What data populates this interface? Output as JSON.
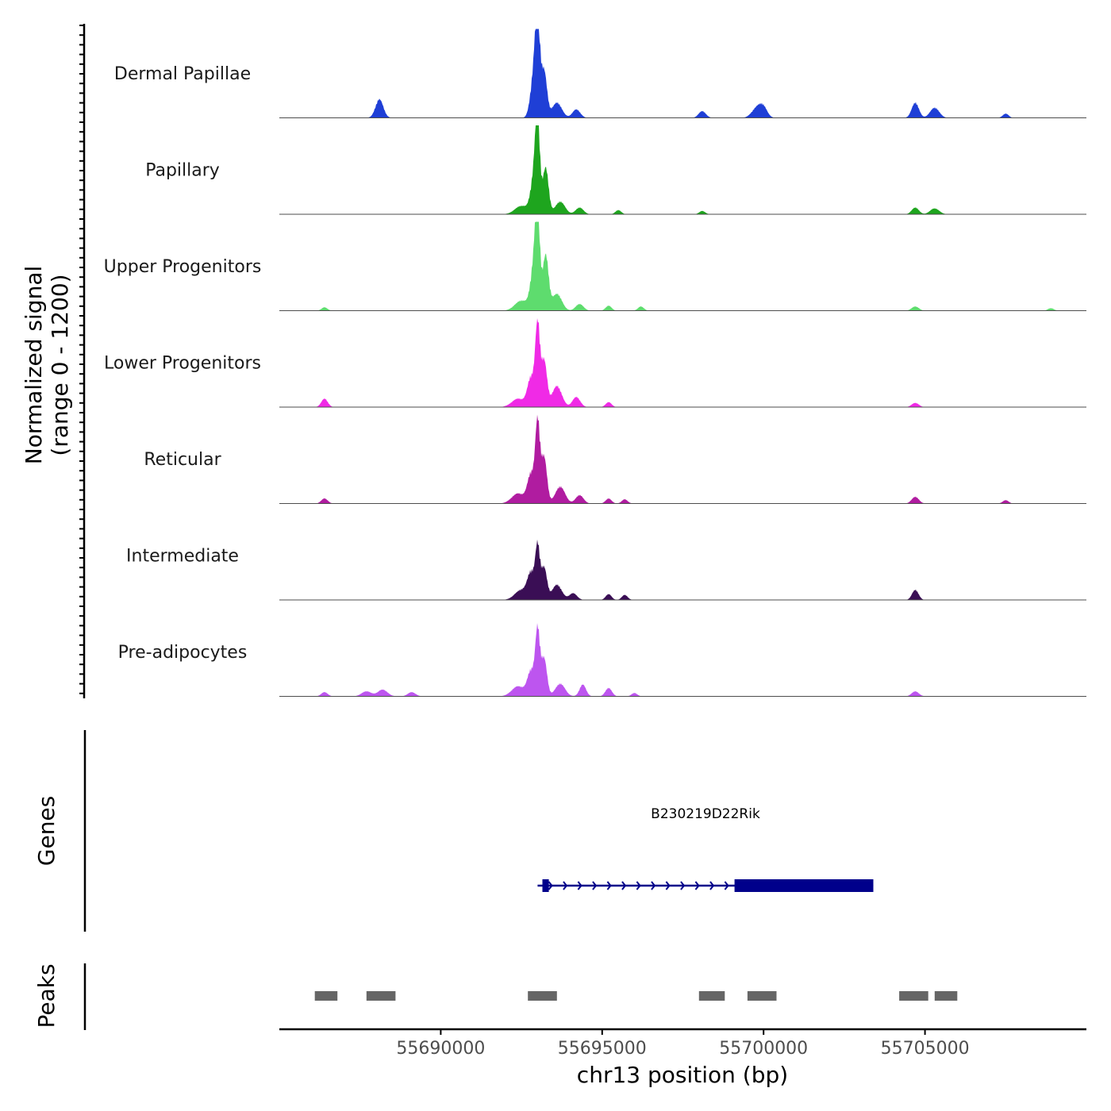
{
  "chart_data": {
    "type": "area",
    "title": "",
    "ylabel": "Normalized signal",
    "ylabel_range": "(range 0 - 1200)",
    "y_range": [
      0,
      1200
    ],
    "xlabel": "chr13 position (bp)",
    "chromosome": "chr13",
    "x_range": [
      55685000,
      55710000
    ],
    "x_ticks": [
      55690000,
      55695000,
      55700000,
      55705000
    ],
    "x_tick_labels": [
      "55690000",
      "55695000",
      "55700000",
      "55705000"
    ],
    "series": [
      {
        "name": "Dermal Papillae",
        "color": "#1f3fd6",
        "peaks": [
          [
            55688100,
            0.22,
            120
          ],
          [
            55692900,
            0.55,
            110
          ],
          [
            55693000,
            0.95,
            70
          ],
          [
            55693200,
            0.55,
            90
          ],
          [
            55693600,
            0.18,
            150
          ],
          [
            55694200,
            0.1,
            120
          ],
          [
            55698100,
            0.08,
            110
          ],
          [
            55699800,
            0.12,
            160
          ],
          [
            55700000,
            0.1,
            120
          ],
          [
            55704700,
            0.18,
            110
          ],
          [
            55705300,
            0.12,
            140
          ],
          [
            55707500,
            0.05,
            90
          ]
        ]
      },
      {
        "name": "Papillary",
        "color": "#1ea51e",
        "peaks": [
          [
            55692500,
            0.1,
            200
          ],
          [
            55692900,
            0.45,
            110
          ],
          [
            55693000,
            0.95,
            70
          ],
          [
            55693250,
            0.55,
            90
          ],
          [
            55693700,
            0.15,
            150
          ],
          [
            55694300,
            0.08,
            120
          ],
          [
            55695500,
            0.05,
            90
          ],
          [
            55698100,
            0.04,
            90
          ],
          [
            55704700,
            0.08,
            110
          ],
          [
            55705300,
            0.07,
            140
          ]
        ]
      },
      {
        "name": "Upper Progenitors",
        "color": "#5edc6e",
        "peaks": [
          [
            55686400,
            0.04,
            90
          ],
          [
            55692500,
            0.12,
            200
          ],
          [
            55692900,
            0.55,
            110
          ],
          [
            55693000,
            0.97,
            70
          ],
          [
            55693250,
            0.65,
            90
          ],
          [
            55693600,
            0.2,
            150
          ],
          [
            55694300,
            0.08,
            120
          ],
          [
            55695200,
            0.06,
            90
          ],
          [
            55696200,
            0.05,
            90
          ],
          [
            55704700,
            0.05,
            110
          ],
          [
            55708900,
            0.03,
            90
          ]
        ]
      },
      {
        "name": "Lower Progenitors",
        "color": "#f02ae6",
        "peaks": [
          [
            55686400,
            0.1,
            100
          ],
          [
            55692400,
            0.1,
            200
          ],
          [
            55692800,
            0.35,
            110
          ],
          [
            55693000,
            0.95,
            70
          ],
          [
            55693200,
            0.55,
            90
          ],
          [
            55693600,
            0.25,
            150
          ],
          [
            55694200,
            0.12,
            120
          ],
          [
            55695200,
            0.06,
            90
          ],
          [
            55704700,
            0.05,
            110
          ]
        ]
      },
      {
        "name": "Reticular",
        "color": "#b01ca0",
        "peaks": [
          [
            55686400,
            0.06,
            100
          ],
          [
            55692400,
            0.12,
            200
          ],
          [
            55692800,
            0.35,
            110
          ],
          [
            55693000,
            0.93,
            70
          ],
          [
            55693200,
            0.55,
            90
          ],
          [
            55693700,
            0.2,
            150
          ],
          [
            55694300,
            0.1,
            120
          ],
          [
            55695200,
            0.06,
            90
          ],
          [
            55695700,
            0.05,
            90
          ],
          [
            55704700,
            0.08,
            110
          ],
          [
            55707500,
            0.04,
            90
          ]
        ]
      },
      {
        "name": "Intermediate",
        "color": "#3a0e55",
        "peaks": [
          [
            55692500,
            0.12,
            200
          ],
          [
            55692800,
            0.3,
            110
          ],
          [
            55693000,
            0.6,
            70
          ],
          [
            55693200,
            0.38,
            90
          ],
          [
            55693600,
            0.18,
            150
          ],
          [
            55694100,
            0.08,
            120
          ],
          [
            55695200,
            0.07,
            90
          ],
          [
            55695700,
            0.06,
            90
          ],
          [
            55704700,
            0.12,
            100
          ]
        ]
      },
      {
        "name": "Pre-adipocytes",
        "color": "#bd55ef",
        "peaks": [
          [
            55686400,
            0.05,
            100
          ],
          [
            55687700,
            0.06,
            150
          ],
          [
            55688200,
            0.08,
            150
          ],
          [
            55689100,
            0.05,
            120
          ],
          [
            55692400,
            0.12,
            200
          ],
          [
            55692800,
            0.3,
            110
          ],
          [
            55693000,
            0.75,
            70
          ],
          [
            55693200,
            0.45,
            90
          ],
          [
            55693700,
            0.15,
            150
          ],
          [
            55694400,
            0.14,
            100
          ],
          [
            55695200,
            0.1,
            100
          ],
          [
            55696000,
            0.04,
            90
          ],
          [
            55704700,
            0.06,
            110
          ]
        ]
      }
    ],
    "genes": {
      "title": "Genes",
      "items": [
        {
          "name": "B230219D22Rik",
          "color": "#00008b",
          "strand": "+",
          "start": 55693000,
          "end": 55703400,
          "exons": [
            [
              55693150,
              55693350
            ],
            [
              55699100,
              55703400
            ]
          ]
        }
      ]
    },
    "peaks_track": {
      "title": "Peaks",
      "color": "#666666",
      "regions": [
        [
          55686100,
          55686800
        ],
        [
          55687700,
          55688600
        ],
        [
          55692700,
          55693600
        ],
        [
          55698000,
          55698800
        ],
        [
          55699500,
          55700400
        ],
        [
          55704200,
          55705100
        ],
        [
          55705300,
          55706000
        ]
      ]
    }
  }
}
